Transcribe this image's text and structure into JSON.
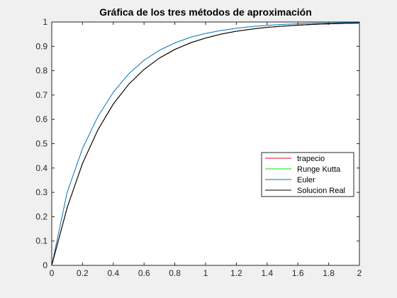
{
  "chart_data": {
    "type": "line",
    "title": "Gráfica de los tres métodos de aproximación",
    "xlabel": "",
    "ylabel": "",
    "xlim": [
      0,
      2
    ],
    "ylim": [
      0,
      1
    ],
    "xticks": [
      0,
      0.2,
      0.4,
      0.6,
      0.8,
      1,
      1.2,
      1.4,
      1.6,
      1.8,
      2
    ],
    "xtick_labels": [
      "0",
      "0.2",
      "0.4",
      "0.6",
      "0.8",
      "1",
      "1.2",
      "1.4",
      "1.6",
      "1.8",
      "2"
    ],
    "yticks": [
      0,
      0.1,
      0.2,
      0.3,
      0.4,
      0.5,
      0.6,
      0.7,
      0.8,
      0.9,
      1
    ],
    "ytick_labels": [
      "0",
      "0.1",
      "0.2",
      "0.3",
      "0.4",
      "0.5",
      "0.6",
      "0.7",
      "0.8",
      "0.9",
      "1"
    ],
    "grid": false,
    "legend_position": "right",
    "x": [
      0,
      0.1,
      0.2,
      0.3,
      0.4,
      0.5,
      0.6,
      0.7,
      0.8,
      0.9,
      1.0,
      1.1,
      1.2,
      1.3,
      1.4,
      1.5,
      1.6,
      1.7,
      1.8,
      1.9,
      2.0
    ],
    "series": [
      {
        "name": "trapecio",
        "color": "#e8001a",
        "values": [
          0,
          0.237,
          0.419,
          0.557,
          0.663,
          0.744,
          0.805,
          0.852,
          0.887,
          0.914,
          0.934,
          0.95,
          0.962,
          0.971,
          0.978,
          0.983,
          0.987,
          0.99,
          0.9925,
          0.9943,
          0.9957
        ]
      },
      {
        "name": "Runge Kutta",
        "color": "#00dd00",
        "values": [
          0,
          0.2553,
          0.4503,
          0.5988,
          0.712,
          0.7982,
          0.8636,
          0.9133,
          0.951,
          0.9797,
          1.0,
          1.0,
          1.0,
          1.0,
          1.0,
          1.0,
          1.0,
          1.0,
          1.0,
          1.0,
          1.0
        ],
        "note_hidden": true
      },
      {
        "name": "Euler",
        "color": "#0072bd",
        "values": [
          0,
          0.3,
          0.48,
          0.612,
          0.711,
          0.787,
          0.843,
          0.884,
          0.914,
          0.937,
          0.953,
          0.965,
          0.974,
          0.981,
          0.986,
          0.99,
          0.9925,
          0.9945,
          0.996,
          0.997,
          0.998
        ]
      },
      {
        "name": "Solucion Real",
        "color": "#000000",
        "values": [
          0,
          0.237,
          0.419,
          0.557,
          0.663,
          0.744,
          0.805,
          0.852,
          0.887,
          0.914,
          0.934,
          0.95,
          0.962,
          0.971,
          0.978,
          0.983,
          0.987,
          0.99,
          0.9925,
          0.9943,
          0.9957
        ]
      }
    ]
  }
}
